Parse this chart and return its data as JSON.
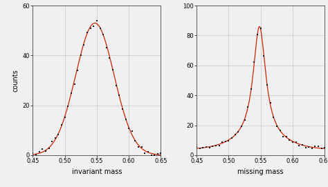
{
  "left_panel": {
    "xlabel": "invariant mass",
    "ylabel": "counts",
    "xlim": [
      0.45,
      0.65
    ],
    "ylim": [
      0,
      60
    ],
    "yticks": [
      0,
      20,
      40,
      60
    ],
    "xticks": [
      0.45,
      0.5,
      0.55,
      0.6,
      0.65
    ],
    "peak": 0.547,
    "amplitude": 53,
    "sigma": 0.03,
    "data_color": "#1a1a1a",
    "fit_color": "#cc2200"
  },
  "right_panel": {
    "xlabel": "missing mass",
    "ylabel": "",
    "xlim": [
      0.45,
      0.65
    ],
    "ylim": [
      0,
      100
    ],
    "yticks": [
      0,
      20,
      40,
      60,
      80,
      100
    ],
    "xticks": [
      0.45,
      0.5,
      0.55,
      0.6,
      0.65
    ],
    "peak": 0.548,
    "amplitude": 86,
    "sigma": 0.012,
    "bg_level": 3.2,
    "bg_sigma": 0.038,
    "data_color": "#1a1a1a",
    "fit_color": "#cc2200"
  },
  "background_color": "#f0f0f0",
  "grid_color": "#cccccc",
  "fig_width": 4.74,
  "fig_height": 2.71
}
